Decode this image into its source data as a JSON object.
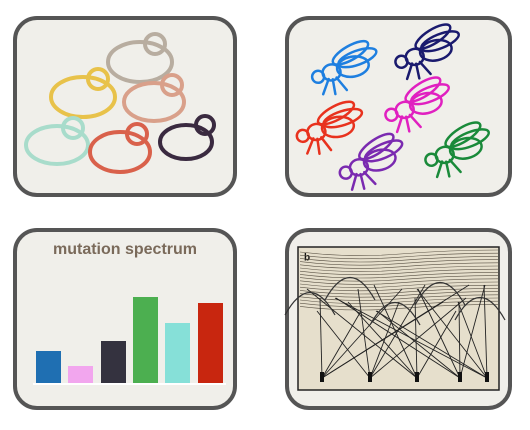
{
  "chart_panel": {
    "title": "mutation spectrum"
  },
  "illustration": {
    "label": "b"
  }
}
